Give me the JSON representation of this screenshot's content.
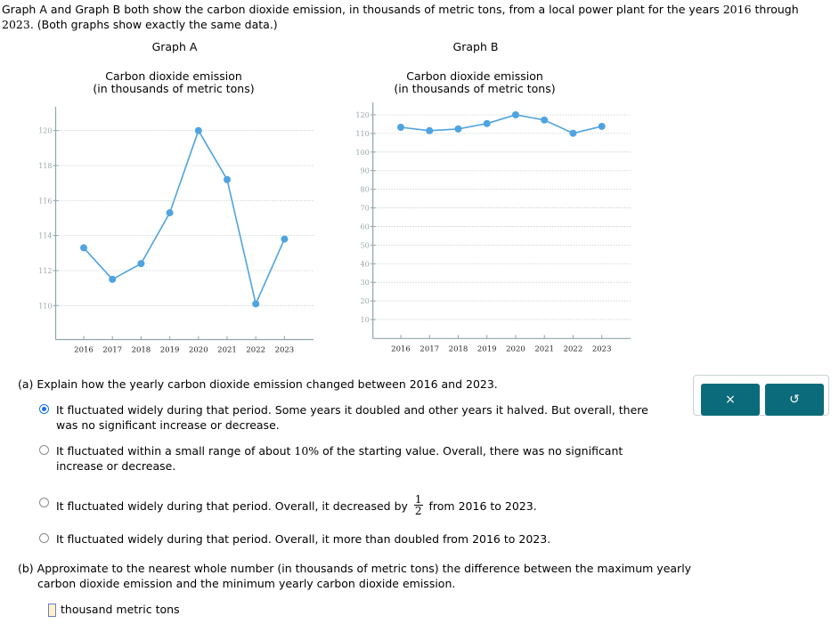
{
  "intro": {
    "text_before": "Graph A and Graph B both show the carbon dioxide emission, in thousands of metric tons, from a local power plant for the years ",
    "year_start": "2016",
    "text_middle": " through ",
    "year_end": "2023",
    "text_after": ". (Both graphs show exactly the same data.)"
  },
  "graph_a": {
    "label": "Graph A",
    "title_line1": "Carbon dioxide emission",
    "title_line2": "(in thousands of metric tons)"
  },
  "graph_b": {
    "label": "Graph B",
    "title_line1": "Carbon dioxide emission",
    "title_line2": "(in thousands of metric tons)"
  },
  "chart_data": [
    {
      "type": "line",
      "title": "Graph A — Carbon dioxide emission (in thousands of metric tons)",
      "xlabel": "",
      "ylabel": "",
      "categories": [
        "2016",
        "2017",
        "2018",
        "2019",
        "2020",
        "2021",
        "2022",
        "2023"
      ],
      "values": [
        113.3,
        111.5,
        112.4,
        115.3,
        120.0,
        117.2,
        110.1,
        113.8
      ],
      "yticks": [
        110,
        112,
        114,
        116,
        118,
        120
      ],
      "ylim": [
        108.2,
        121.7
      ],
      "grid": true,
      "line_color": "#4fa3e0"
    },
    {
      "type": "line",
      "title": "Graph B — Carbon dioxide emission (in thousands of metric tons)",
      "xlabel": "",
      "ylabel": "",
      "categories": [
        "2016",
        "2017",
        "2018",
        "2019",
        "2020",
        "2021",
        "2022",
        "2023"
      ],
      "values": [
        113.3,
        111.5,
        112.4,
        115.3,
        120.0,
        117.2,
        110.1,
        113.8
      ],
      "yticks": [
        10,
        20,
        30,
        40,
        50,
        60,
        70,
        80,
        90,
        100,
        110,
        120
      ],
      "ylim": [
        0,
        126
      ],
      "grid": true,
      "line_color": "#4fa3e0"
    }
  ],
  "part_a": {
    "question": "(a) Explain how the yearly carbon dioxide emission changed between 2016 and 2023.",
    "options": [
      {
        "text": "It fluctuated widely during that period. Some years it doubled and other years it halved. But overall, there was no significant increase or decrease.",
        "selected": true
      },
      {
        "text_before": "It fluctuated within a small range of about ",
        "percent": "10%",
        "text_after": " of the starting value. Overall, there was no significant increase or decrease.",
        "selected": false
      },
      {
        "text_before": "It fluctuated widely during that period. Overall, it decreased by ",
        "frac_num": "1",
        "frac_den": "2",
        "text_after": " from 2016 to 2023.",
        "selected": false
      },
      {
        "text": "It fluctuated widely during that period. Overall, it more than doubled from 2016 to 2023.",
        "selected": false
      }
    ]
  },
  "part_b": {
    "question_line1": "(b) Approximate to the nearest whole number (in thousands of metric tons) the difference between the maximum yearly",
    "question_line2": "carbon dioxide emission and the minimum yearly carbon dioxide emission.",
    "answer_value": "",
    "unit": "thousand metric tons"
  },
  "actions": {
    "clear_icon": "×",
    "reset_icon": "↺"
  }
}
